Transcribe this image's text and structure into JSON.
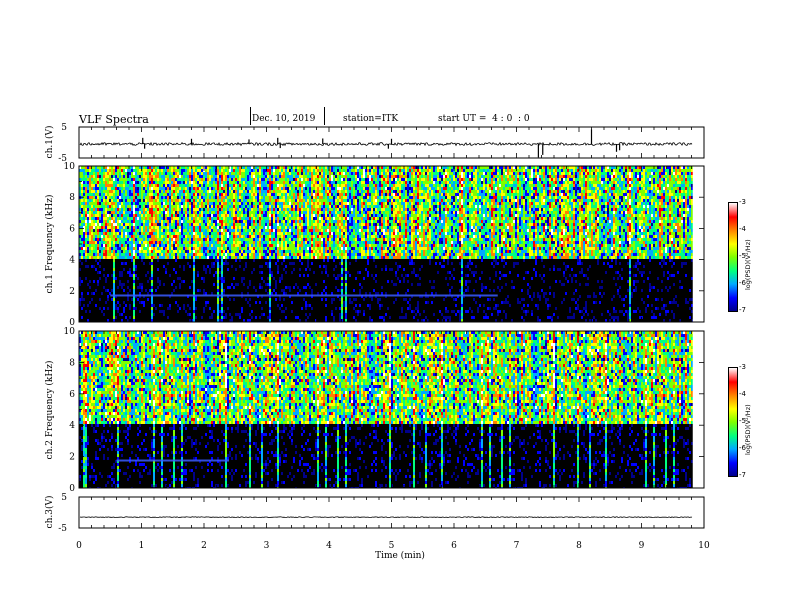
{
  "header": {
    "title": "VLF Spectra",
    "date": "Dec. 10, 2019",
    "station": "station=ITK",
    "start": "start UT =  4 : 0  : 0"
  },
  "colorbars": [
    {
      "ticks": [
        "-3",
        "-4",
        "-5",
        "-6",
        "-7"
      ],
      "label": "log(PSD)(V²/Hz)"
    },
    {
      "ticks": [
        "-3",
        "-4",
        "-5",
        "-6",
        "-7"
      ],
      "label": "log(PSD)(V²/Hz)"
    }
  ],
  "colormap": [
    "#000000",
    "#00008b",
    "#0000ff",
    "#00aaff",
    "#00ff80",
    "#7fff00",
    "#ffff00",
    "#ff8000",
    "#ff0000",
    "#ffffff"
  ],
  "chart_data": [
    {
      "type": "line",
      "name": "waveform-ch1",
      "ylabel": "ch.1(V)",
      "ylim": [
        -5,
        5
      ],
      "yticks": [
        "5",
        "-5"
      ],
      "xlim": [
        0,
        10
      ],
      "x_start": 0,
      "x_end": 9.82,
      "baseline": -0.5,
      "spikes": [
        {
          "x": 1.02,
          "y": 1.5
        },
        {
          "x": 1.05,
          "y": -2.0
        },
        {
          "x": 1.8,
          "y": 1.2
        },
        {
          "x": 2.72,
          "y": 1.0
        },
        {
          "x": 3.18,
          "y": 1.5
        },
        {
          "x": 3.22,
          "y": -1.8
        },
        {
          "x": 3.9,
          "y": 1.3
        },
        {
          "x": 4.95,
          "y": -2.0
        },
        {
          "x": 5.0,
          "y": 1.2
        },
        {
          "x": 7.35,
          "y": -4.8
        },
        {
          "x": 7.42,
          "y": -4.0
        },
        {
          "x": 8.2,
          "y": 4.2
        },
        {
          "x": 8.6,
          "y": -3.0
        },
        {
          "x": 8.65,
          "y": -2.5
        }
      ]
    },
    {
      "type": "heatmap",
      "name": "spectrogram-ch1",
      "ylabel": "ch.1 Frequency (kHz)",
      "xlim": [
        0,
        10
      ],
      "ylim": [
        0,
        10
      ],
      "yticks": [
        "0",
        "2",
        "4",
        "6",
        "8",
        "10"
      ],
      "x_start": 0,
      "x_end": 9.82,
      "zlim": [
        -7,
        -3
      ],
      "low_band_top_khz": 4.2,
      "tone_band": {
        "freq_khz": 1.7,
        "x_from": 0.5,
        "x_to": 6.7
      }
    },
    {
      "type": "heatmap",
      "name": "spectrogram-ch2",
      "ylabel": "ch.2 Frequency (kHz)",
      "xlim": [
        0,
        10
      ],
      "ylim": [
        0,
        10
      ],
      "yticks": [
        "0",
        "2",
        "4",
        "6",
        "8",
        "10"
      ],
      "x_start": 0,
      "x_end": 9.82,
      "zlim": [
        -7,
        -3
      ],
      "low_band_top_khz": 4.2,
      "tone_band": {
        "freq_khz": 1.75,
        "x_from": 0.6,
        "x_to": 2.4
      }
    },
    {
      "type": "line",
      "name": "waveform-ch3",
      "ylabel": "ch.3(V)",
      "ylim": [
        -5,
        5
      ],
      "yticks": [
        "5",
        "-5"
      ],
      "xlim": [
        0,
        10
      ],
      "x_start": 0,
      "x_end": 9.82,
      "baseline": -1.5,
      "spikes": []
    }
  ],
  "xaxis": {
    "label": "Time (min)",
    "ticks": [
      "0",
      "1",
      "2",
      "3",
      "4",
      "5",
      "6",
      "7",
      "8",
      "9",
      "10"
    ]
  }
}
